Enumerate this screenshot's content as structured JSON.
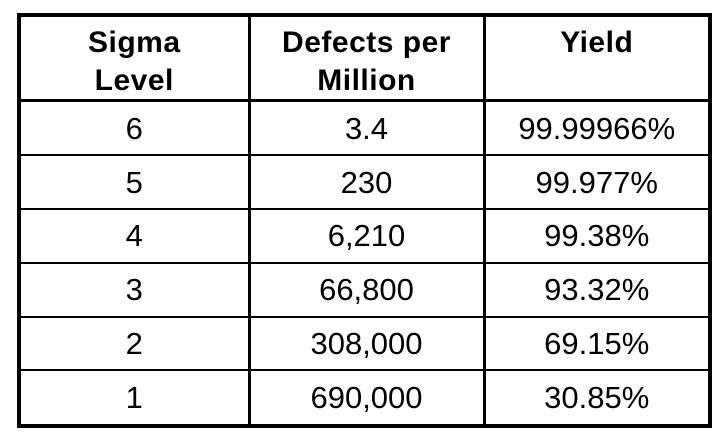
{
  "page": {
    "background_color": "#ffffff",
    "border_color": "#000000",
    "text_color": "#000000"
  },
  "table": {
    "headers": [
      "Sigma\nLevel",
      "Defects per\nMillion",
      "Yield"
    ],
    "rows": [
      [
        "6",
        "3.4",
        "99.99966%"
      ],
      [
        "5",
        "230",
        "99.977%"
      ],
      [
        "4",
        "6,210",
        "99.38%"
      ],
      [
        "3",
        "66,800",
        "93.32%"
      ],
      [
        "2",
        "308,000",
        "69.15%"
      ],
      [
        "1",
        "690,000",
        "30.85%"
      ]
    ]
  },
  "chart_data": {
    "type": "table",
    "columns": [
      "Sigma Level",
      "Defects per Million",
      "Yield"
    ],
    "rows": [
      {
        "sigma_level": 6,
        "defects_per_million": 3.4,
        "yield_percent": 99.99966
      },
      {
        "sigma_level": 5,
        "defects_per_million": 230,
        "yield_percent": 99.977
      },
      {
        "sigma_level": 4,
        "defects_per_million": 6210,
        "yield_percent": 99.38
      },
      {
        "sigma_level": 3,
        "defects_per_million": 66800,
        "yield_percent": 93.32
      },
      {
        "sigma_level": 2,
        "defects_per_million": 308000,
        "yield_percent": 69.15
      },
      {
        "sigma_level": 1,
        "defects_per_million": 690000,
        "yield_percent": 30.85
      }
    ],
    "title": "",
    "legend": "none",
    "grid": "full-borders"
  }
}
